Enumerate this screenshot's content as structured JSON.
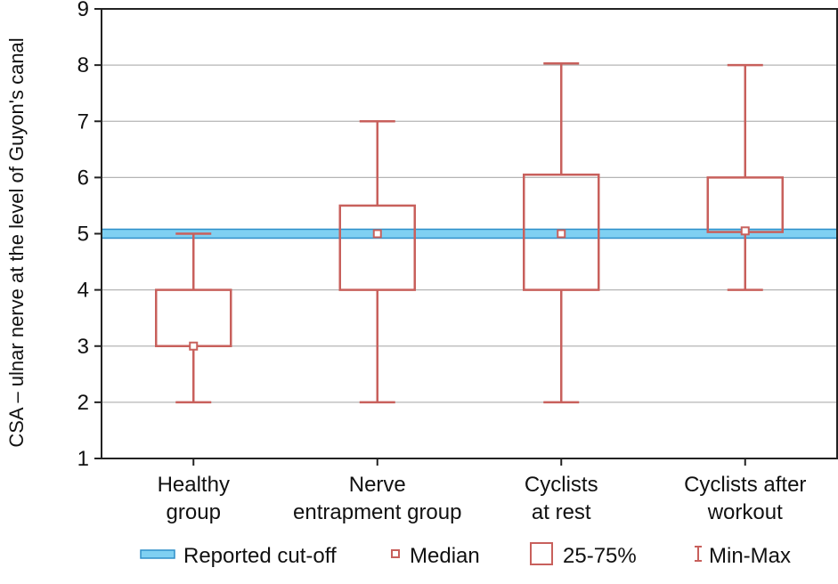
{
  "chart_data": {
    "type": "boxplot",
    "title": "",
    "xlabel": "",
    "ylabel": "CSA – ulnar nerve at the level of Guyon's canal",
    "ylim": [
      1,
      9
    ],
    "yticks": [
      1,
      2,
      3,
      4,
      5,
      6,
      7,
      8,
      9
    ],
    "grid": true,
    "categories": [
      [
        "Healthy",
        "group"
      ],
      [
        "Nerve",
        "entrapment group"
      ],
      [
        "Cyclists",
        "at rest"
      ],
      [
        "Cyclists after",
        "workout"
      ]
    ],
    "boxes": [
      {
        "min": 2,
        "q1": 3,
        "median": 3,
        "q3": 4,
        "max": 5
      },
      {
        "min": 2,
        "q1": 4,
        "median": 5,
        "q3": 5.5,
        "max": 7
      },
      {
        "min": 2,
        "q1": 4,
        "median": 5,
        "q3": 6.05,
        "max": 8.03
      },
      {
        "min": 4,
        "q1": 5.03,
        "median": 5.05,
        "q3": 6,
        "max": 8
      }
    ],
    "reference_line": {
      "label": "Reported cut-off",
      "value": 5
    },
    "legend": {
      "position": "bottom",
      "entries": [
        "Reported cut-off",
        "Median",
        "25-75%",
        "Min-Max"
      ]
    },
    "colors": {
      "box": "#c8605c",
      "cutoff_fill": "#7fd0f2",
      "cutoff_stroke": "#2f8fc9",
      "grid": "#b5b5b5",
      "axis": "#222222"
    }
  }
}
